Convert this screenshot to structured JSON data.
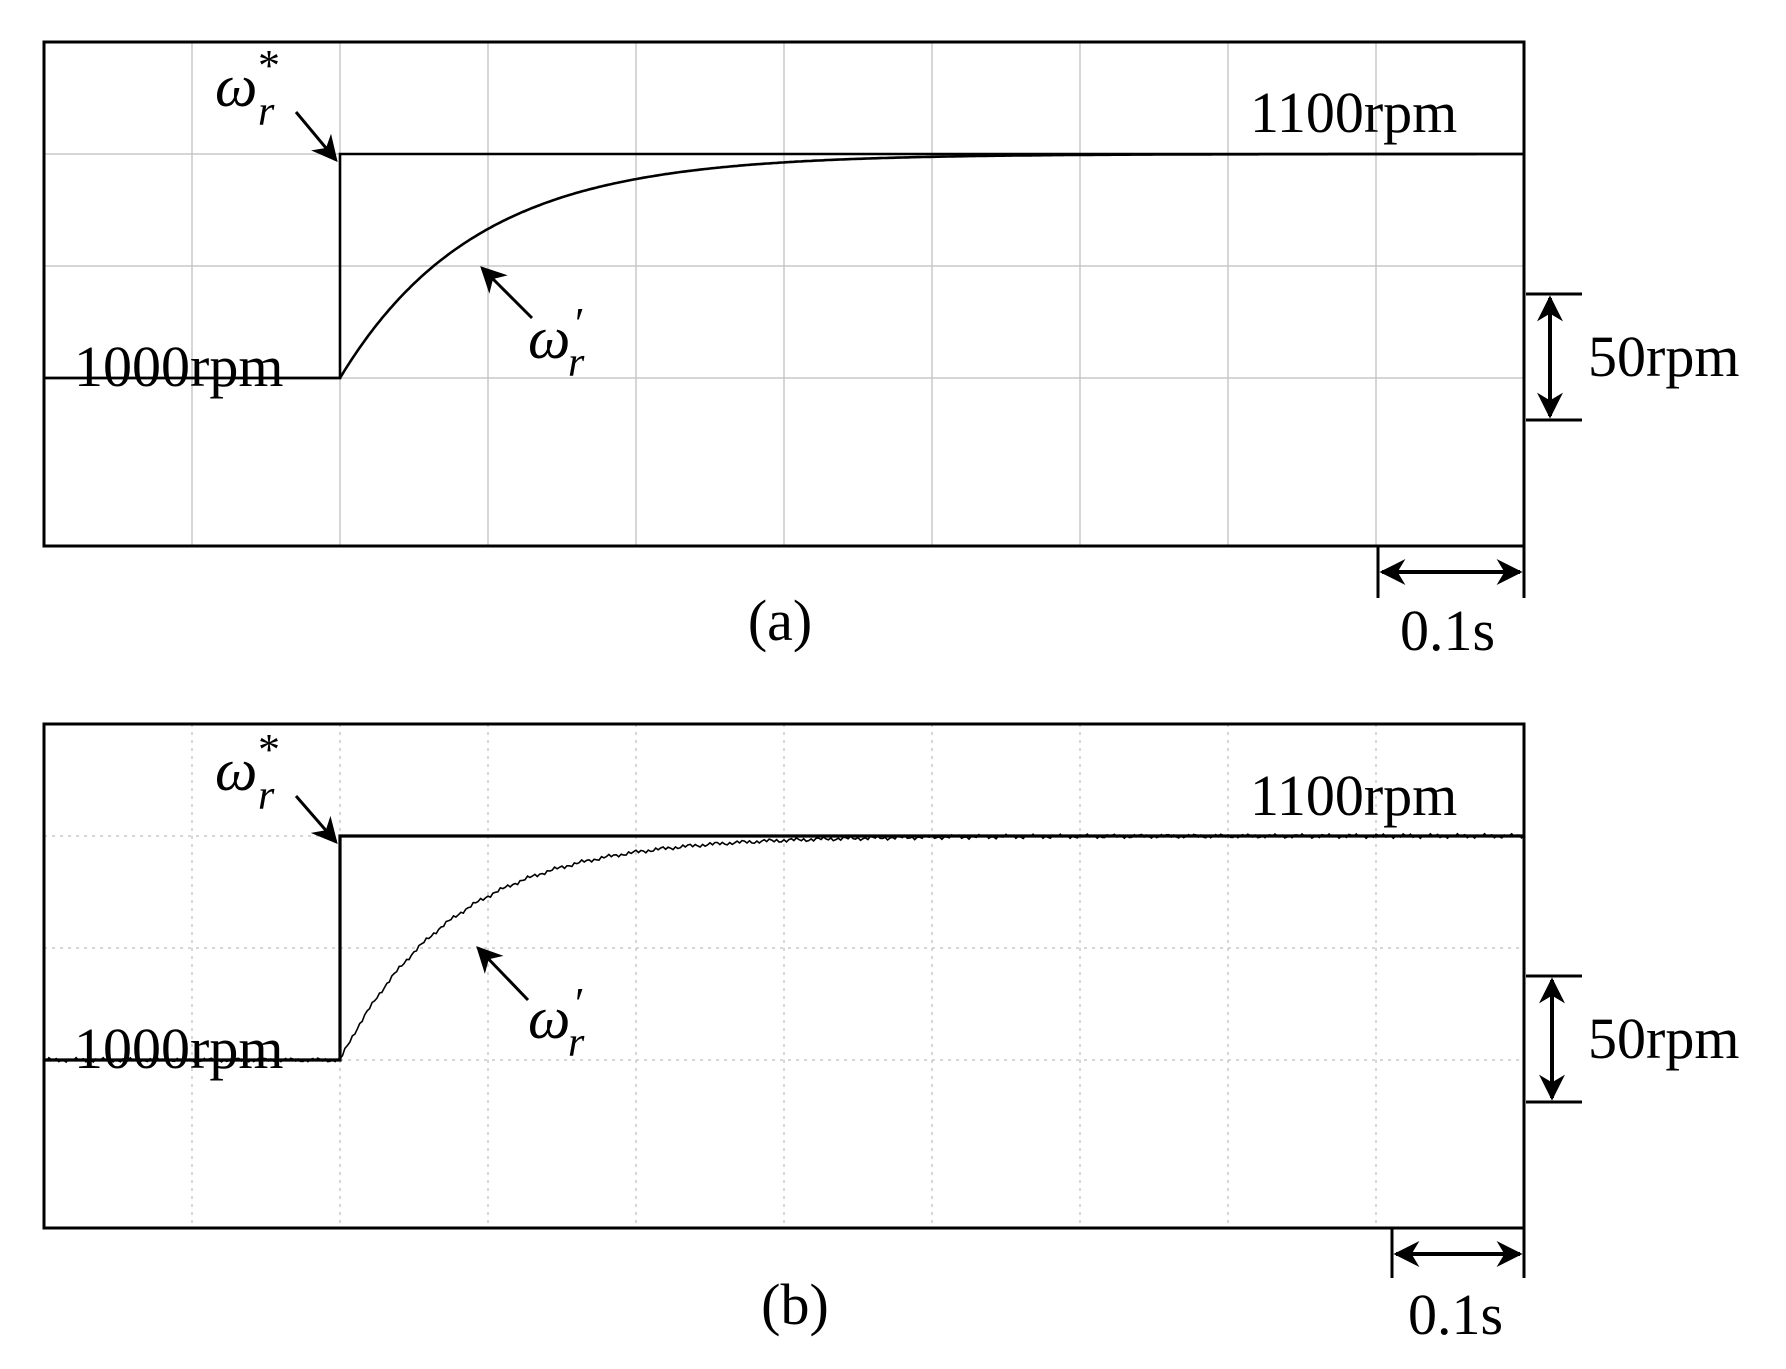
{
  "chart_data": [
    {
      "type": "line",
      "panel_label": "(a)",
      "grid": true,
      "grid_style": "solid",
      "noisy": false,
      "x_divisions": 10,
      "y_divisions": 3,
      "x_unit_per_division": "0.1s",
      "y_unit_per_division": "50rpm",
      "xlim": [
        0,
        1.0
      ],
      "ylim": [
        950,
        1100
      ],
      "step_time": 0.2,
      "settled_time": 0.62,
      "initial_value": 1000,
      "final_value": 1100,
      "series": [
        {
          "symbol": "ω",
          "sub": "r",
          "sup": "*",
          "x": [
            0,
            0.2,
            0.2,
            1.0
          ],
          "y": [
            1000,
            1000,
            1100,
            1100
          ]
        },
        {
          "symbol": "ω",
          "sub": "r",
          "sup": "′",
          "x": [
            0,
            0.2,
            0.3,
            0.4,
            0.5,
            0.6,
            0.65,
            1.0
          ],
          "y": [
            1000,
            1000,
            1063,
            1086,
            1095,
            1099,
            1100,
            1100
          ]
        }
      ],
      "labels": {
        "initial": "1000rpm",
        "final": "1100rpm",
        "y_scale": "50rpm",
        "x_scale": "0.1s"
      }
    },
    {
      "type": "line",
      "panel_label": "(b)",
      "grid": true,
      "grid_style": "dotted",
      "noisy": true,
      "x_divisions": 10,
      "y_divisions": 3,
      "x_unit_per_division": "0.1s",
      "y_unit_per_division": "50rpm",
      "xlim": [
        0,
        1.0
      ],
      "ylim": [
        950,
        1100
      ],
      "step_time": 0.2,
      "settled_time": 0.55,
      "initial_value": 1000,
      "final_value": 1100,
      "series": [
        {
          "symbol": "ω",
          "sub": "r",
          "sup": "*",
          "x": [
            0,
            0.2,
            0.2,
            1.0
          ],
          "y": [
            1000,
            1000,
            1100,
            1100
          ]
        },
        {
          "symbol": "ω",
          "sub": "r",
          "sup": "′",
          "x": [
            0,
            0.2,
            0.3,
            0.4,
            0.5,
            0.55,
            1.0
          ],
          "y": [
            1000,
            1000,
            1063,
            1088,
            1097,
            1100,
            1100
          ]
        }
      ],
      "labels": {
        "initial": "1000rpm",
        "final": "1100rpm",
        "y_scale": "50rpm",
        "x_scale": "0.1s"
      }
    }
  ]
}
